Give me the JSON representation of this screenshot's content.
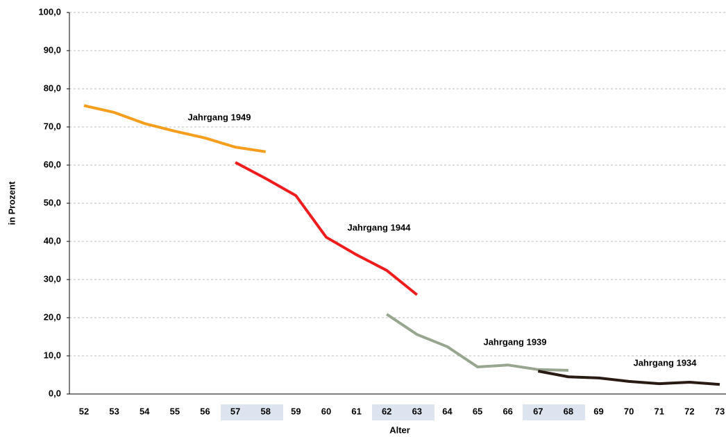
{
  "chart_data": {
    "type": "line",
    "x_label": "Alter",
    "y_label": "in Prozent",
    "categories": [
      "52",
      "53",
      "54",
      "55",
      "56",
      "57",
      "58",
      "59",
      "60",
      "61",
      "62",
      "63",
      "64",
      "65",
      "66",
      "67",
      "68",
      "69",
      "70",
      "71",
      "72",
      "73"
    ],
    "ylim": [
      0,
      100
    ],
    "yticks": [
      {
        "value": 0,
        "label": "0,0"
      },
      {
        "value": 10,
        "label": "10,0"
      },
      {
        "value": 20,
        "label": "20,0"
      },
      {
        "value": 30,
        "label": "30,0"
      },
      {
        "value": 40,
        "label": "40,0"
      },
      {
        "value": 50,
        "label": "50,0"
      },
      {
        "value": 60,
        "label": "60,0"
      },
      {
        "value": 70,
        "label": "70,0"
      },
      {
        "value": 80,
        "label": "80,0"
      },
      {
        "value": 90,
        "label": "90,0"
      },
      {
        "value": 100,
        "label": "100,0"
      }
    ],
    "grid": true,
    "series": [
      {
        "name": "Jahrgang 1949",
        "color": "#f59d1c",
        "values": [
          75.6,
          73.8,
          70.9,
          68.9,
          67.1,
          64.7,
          63.5,
          null,
          null,
          null,
          null,
          null,
          null,
          null,
          null,
          null,
          null,
          null,
          null,
          null,
          null,
          null
        ]
      },
      {
        "name": "Jahrgang 1944",
        "color": "#ee1c1c",
        "values": [
          null,
          null,
          null,
          null,
          null,
          60.7,
          56.5,
          52.0,
          41.1,
          36.5,
          32.4,
          26.0,
          null,
          null,
          null,
          null,
          null,
          null,
          null,
          null,
          null,
          null
        ]
      },
      {
        "name": "Jahrgang 1939",
        "color": "#98a690",
        "values": [
          null,
          null,
          null,
          null,
          null,
          null,
          null,
          null,
          null,
          null,
          20.9,
          15.6,
          12.4,
          7.1,
          7.6,
          6.4,
          6.2,
          null,
          null,
          null,
          null,
          null
        ]
      },
      {
        "name": "Jahrgang 1934",
        "color": "#2a1a14",
        "values": [
          null,
          null,
          null,
          null,
          null,
          null,
          null,
          null,
          null,
          null,
          null,
          null,
          null,
          null,
          null,
          6.0,
          4.5,
          4.2,
          3.3,
          2.7,
          3.1,
          2.5
        ]
      }
    ]
  }
}
